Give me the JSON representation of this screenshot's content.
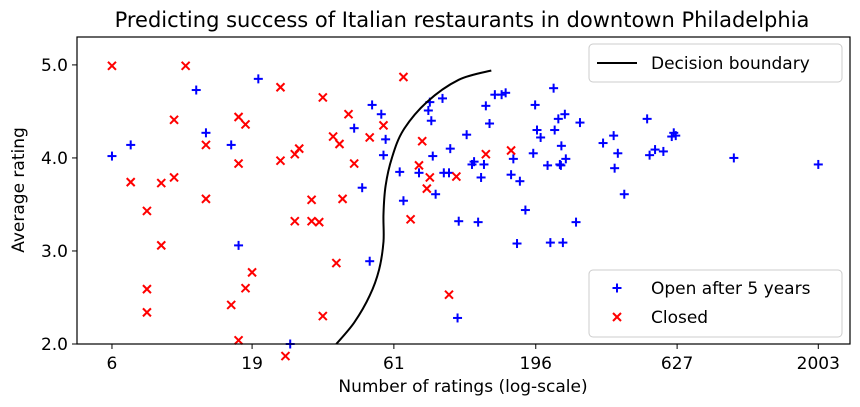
{
  "chart_data": {
    "type": "scatter",
    "title": "Predicting success of Italian restaurants in downtown Philadelphia",
    "xlabel": "Number of ratings (log-scale)",
    "ylabel": "Average rating",
    "x_scale": "log",
    "x_ticks": [
      6,
      19,
      61,
      196,
      627,
      2003
    ],
    "y_tick_labels": [
      "2.0",
      "3.0",
      "4.0",
      "5.0"
    ],
    "y_tick_positions": [
      2.0,
      3.0,
      4.0,
      5.0
    ],
    "x_tick_labels": [
      "6",
      "19",
      "61",
      "196",
      "627",
      "2003"
    ],
    "xlim": [
      4.5,
      2600
    ],
    "ylim": [
      2.0,
      5.3
    ],
    "grid": false,
    "legend_upper": "top-right",
    "legend_lower": "bottom-right",
    "series": [
      {
        "name": "Open after 5 years",
        "marker": "plus",
        "color": "#0000ff",
        "points": [
          [
            6,
            4.02
          ],
          [
            7,
            4.14
          ],
          [
            12,
            4.73
          ],
          [
            13,
            4.27
          ],
          [
            16,
            4.14
          ],
          [
            17,
            3.06
          ],
          [
            20,
            4.85
          ],
          [
            26,
            2.0
          ],
          [
            44,
            4.32
          ],
          [
            47,
            3.68
          ],
          [
            50,
            2.89
          ],
          [
            51,
            4.57
          ],
          [
            55,
            4.47
          ],
          [
            56,
            4.03
          ],
          [
            57,
            4.2
          ],
          [
            64,
            3.85
          ],
          [
            66,
            3.54
          ],
          [
            75,
            3.84
          ],
          [
            81,
            4.51
          ],
          [
            82,
            4.6
          ],
          [
            83,
            4.4
          ],
          [
            84,
            4.02
          ],
          [
            86,
            3.61
          ],
          [
            91,
            4.64
          ],
          [
            92,
            3.84
          ],
          [
            96,
            3.84
          ],
          [
            97,
            4.1
          ],
          [
            104,
            3.32
          ],
          [
            103,
            2.28
          ],
          [
            111,
            4.25
          ],
          [
            116,
            3.93
          ],
          [
            118,
            3.96
          ],
          [
            122,
            3.31
          ],
          [
            125,
            3.79
          ],
          [
            128,
            3.93
          ],
          [
            130,
            4.56
          ],
          [
            134,
            4.37
          ],
          [
            140,
            4.68
          ],
          [
            148,
            4.68
          ],
          [
            153,
            4.7
          ],
          [
            160,
            3.82
          ],
          [
            163,
            3.99
          ],
          [
            168,
            3.08
          ],
          [
            172,
            3.75
          ],
          [
            180,
            3.44
          ],
          [
            192,
            4.05
          ],
          [
            195,
            4.57
          ],
          [
            198,
            4.3
          ],
          [
            204,
            4.22
          ],
          [
            216,
            3.92
          ],
          [
            221,
            3.09
          ],
          [
            227,
            4.75
          ],
          [
            229,
            4.3
          ],
          [
            236,
            4.42
          ],
          [
            239,
            3.93
          ],
          [
            241,
            3.92
          ],
          [
            242,
            4.13
          ],
          [
            245,
            3.09
          ],
          [
            249,
            4.47
          ],
          [
            251,
            3.99
          ],
          [
            273,
            3.31
          ],
          [
            282,
            4.38
          ],
          [
            341,
            4.16
          ],
          [
            372,
            4.24
          ],
          [
            375,
            3.89
          ],
          [
            385,
            4.05
          ],
          [
            406,
            3.61
          ],
          [
            490,
            4.42
          ],
          [
            500,
            4.03
          ],
          [
            523,
            4.09
          ],
          [
            560,
            4.07
          ],
          [
            600,
            4.23
          ],
          [
            610,
            4.27
          ],
          [
            620,
            4.24
          ],
          [
            1000,
            4.0
          ],
          [
            2003,
            3.93
          ]
        ]
      },
      {
        "name": "Closed",
        "marker": "x",
        "color": "#ff0000",
        "points": [
          [
            6,
            4.99
          ],
          [
            7,
            3.74
          ],
          [
            8,
            3.43
          ],
          [
            8,
            2.34
          ],
          [
            8,
            2.59
          ],
          [
            9,
            3.73
          ],
          [
            9,
            3.06
          ],
          [
            10,
            4.41
          ],
          [
            10,
            3.79
          ],
          [
            11,
            4.99
          ],
          [
            13,
            4.14
          ],
          [
            13,
            3.56
          ],
          [
            16,
            2.42
          ],
          [
            17,
            4.44
          ],
          [
            17,
            3.94
          ],
          [
            17,
            2.04
          ],
          [
            18,
            4.36
          ],
          [
            18,
            2.6
          ],
          [
            19,
            2.77
          ],
          [
            24,
            4.76
          ],
          [
            24,
            3.97
          ],
          [
            25,
            1.87
          ],
          [
            27,
            4.04
          ],
          [
            27,
            3.32
          ],
          [
            28,
            4.1
          ],
          [
            31,
            3.55
          ],
          [
            31,
            3.32
          ],
          [
            33,
            3.31
          ],
          [
            34,
            4.65
          ],
          [
            34,
            2.3
          ],
          [
            37,
            4.23
          ],
          [
            38,
            2.87
          ],
          [
            39,
            4.15
          ],
          [
            40,
            3.56
          ],
          [
            42,
            4.47
          ],
          [
            44,
            3.94
          ],
          [
            50,
            4.22
          ],
          [
            56,
            4.35
          ],
          [
            66,
            4.87
          ],
          [
            70,
            3.34
          ],
          [
            75,
            3.92
          ],
          [
            77,
            4.18
          ],
          [
            80,
            3.67
          ],
          [
            82,
            3.79
          ],
          [
            96,
            2.53
          ],
          [
            102,
            3.8
          ],
          [
            130,
            4.04
          ],
          [
            160,
            4.08
          ]
        ]
      }
    ],
    "boundary": {
      "name": "Decision boundary",
      "color": "#000000",
      "points": [
        [
          38,
          2.0
        ],
        [
          44,
          2.23
        ],
        [
          50,
          2.52
        ],
        [
          54,
          2.8
        ],
        [
          56,
          3.1
        ],
        [
          56,
          3.4
        ],
        [
          57,
          3.7
        ],
        [
          60,
          4.0
        ],
        [
          66,
          4.3
        ],
        [
          80,
          4.6
        ],
        [
          104,
          4.84
        ],
        [
          136,
          4.94
        ]
      ]
    }
  }
}
